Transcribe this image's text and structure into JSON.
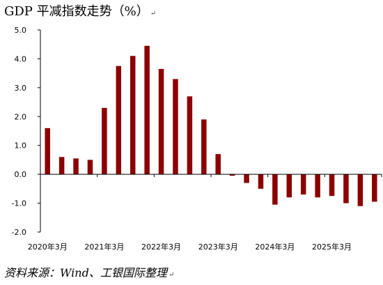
{
  "title": "GDP 平减指数走势（%）",
  "return_mark": "↵",
  "source": "资料来源：Wind、工银国际整理",
  "chart_data": {
    "type": "bar",
    "categories": [
      "2020Q1",
      "2020Q2",
      "2020Q3",
      "2020Q4",
      "2021Q1",
      "2021Q2",
      "2021Q3",
      "2021Q4",
      "2022Q1",
      "2022Q2",
      "2022Q3",
      "2022Q4",
      "2023Q1",
      "2023Q2",
      "2023Q3",
      "2023Q4",
      "2024Q1",
      "2024Q2",
      "2024Q3",
      "2024Q4",
      "2025Q1",
      "2025Q2",
      "2025Q3",
      "2025Q4"
    ],
    "values": [
      1.6,
      0.6,
      0.55,
      0.5,
      2.3,
      3.75,
      4.1,
      4.45,
      3.65,
      3.3,
      2.7,
      1.9,
      0.7,
      -0.05,
      -0.3,
      -0.5,
      -1.05,
      -0.8,
      -0.7,
      -0.8,
      -0.75,
      -1.0,
      -1.1,
      -0.95
    ],
    "x_tick_labels": [
      "2020年3月",
      "2021年3月",
      "2022年3月",
      "2023年3月",
      "2024年3月",
      "2025年3月"
    ],
    "y_tick_labels": [
      "5.0",
      "4.0",
      "3.0",
      "2.0",
      "1.0",
      "0.0",
      "-1.0",
      "-2.0"
    ],
    "ylim": [
      -2,
      5
    ],
    "bar_color": "#8b0000",
    "grid": false
  }
}
